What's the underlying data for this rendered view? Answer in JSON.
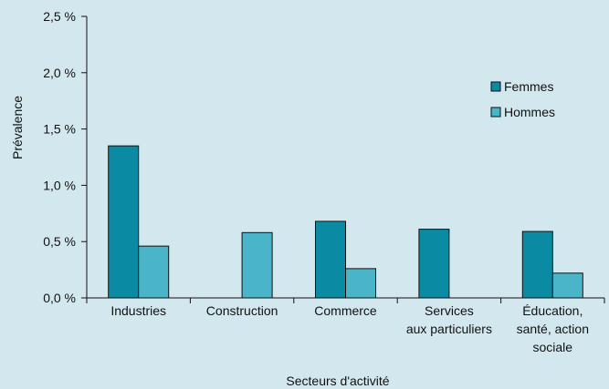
{
  "chart_data": {
    "type": "bar",
    "title": "",
    "xlabel": "Secteurs d'activité",
    "ylabel": "Prévalence",
    "ylim": [
      0,
      2.5
    ],
    "yticks": [
      0,
      0.5,
      1.0,
      1.5,
      2.0,
      2.5
    ],
    "ytick_labels": [
      "0,0 %",
      "0,5 %",
      "1,0 %",
      "1,5 %",
      "2,0 %",
      "2,5 %"
    ],
    "categories": [
      [
        "Industries"
      ],
      [
        "Construction"
      ],
      [
        "Commerce"
      ],
      [
        "Services",
        "aux particuliers"
      ],
      [
        "Éducation,",
        "santé, action",
        "sociale"
      ]
    ],
    "series": [
      {
        "name": "Femmes",
        "color": "#0b8aa3",
        "values": [
          1.35,
          null,
          0.68,
          0.61,
          0.59
        ]
      },
      {
        "name": "Hommes",
        "color": "#4ab4c8",
        "values": [
          0.46,
          0.58,
          0.26,
          null,
          0.22
        ]
      }
    ],
    "grid": false,
    "legend_position": "top-right"
  }
}
